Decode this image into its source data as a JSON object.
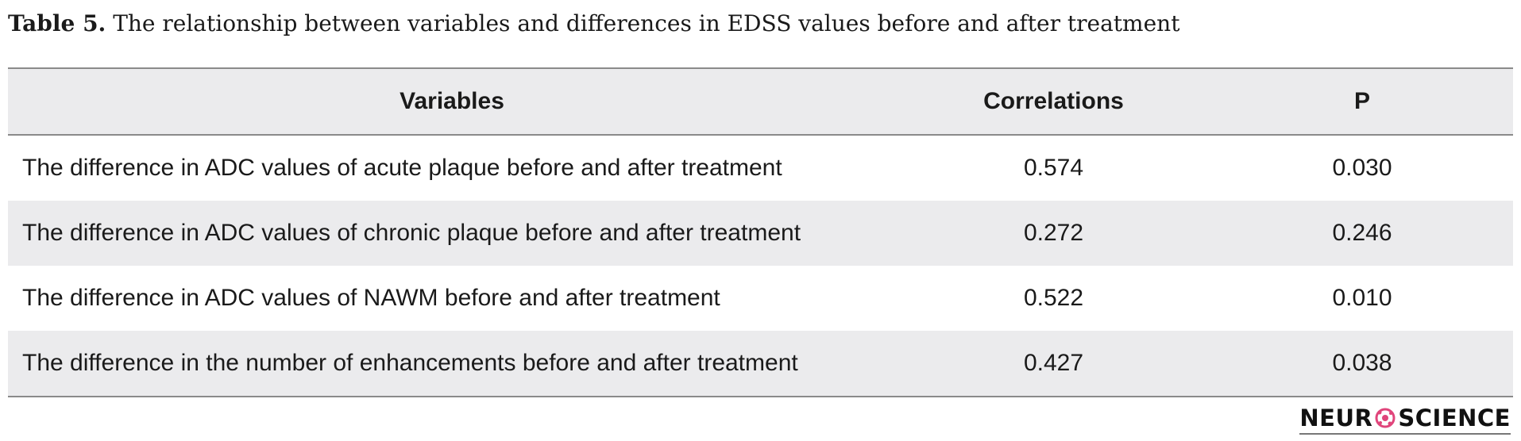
{
  "caption": {
    "label": "Table 5.",
    "text": " The relationship between variables and differences in EDSS values before and after treatment"
  },
  "table": {
    "headers": {
      "variables": "Variables",
      "correlations": "Correlations",
      "p": "P"
    },
    "rows": [
      {
        "variable": "The difference in ADC values of acute plaque before and after treatment",
        "correlation": "0.574",
        "p": "0.030"
      },
      {
        "variable": "The difference in ADC values of chronic plaque before and after treatment",
        "correlation": "0.272",
        "p": "0.246"
      },
      {
        "variable": "The difference in ADC values of NAWM before and after treatment",
        "correlation": "0.522",
        "p": "0.010"
      },
      {
        "variable": "The difference in the number of enhancements before and after treatment",
        "correlation": "0.427",
        "p": "0.038"
      }
    ]
  },
  "logo": {
    "left_text": "NEUR",
    "right_text": "SCIENCE",
    "accent_color": "#e0457b"
  },
  "colors": {
    "header_bg": "#ebebed",
    "rule": "#8a8a8a"
  }
}
